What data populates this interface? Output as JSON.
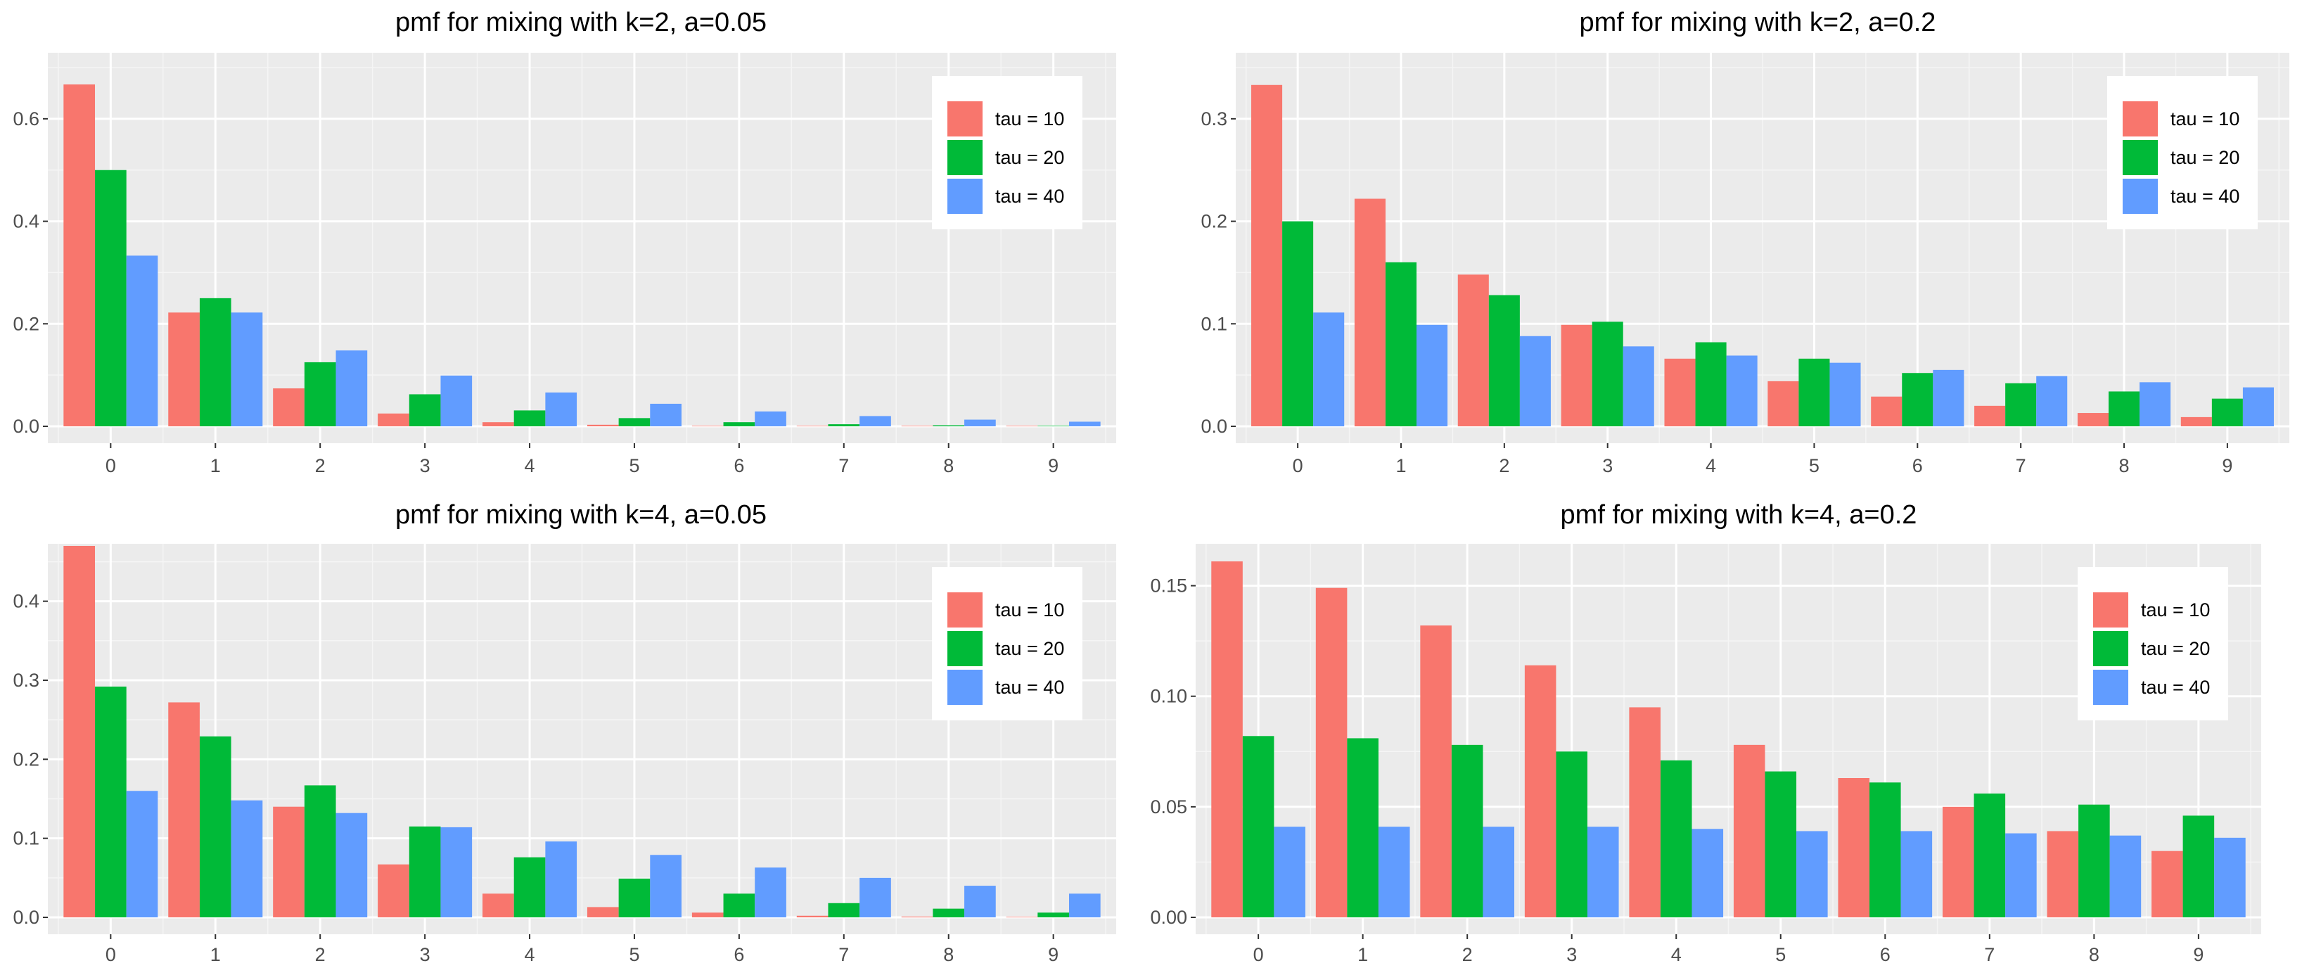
{
  "figure": {
    "legend_title": "",
    "legend_position": "top-right"
  },
  "series_meta": [
    {
      "name": "tau = 10",
      "color": "#F8766D"
    },
    {
      "name": "tau = 20",
      "color": "#00BA38"
    },
    {
      "name": "tau = 40",
      "color": "#619CFF"
    }
  ],
  "chart_data": [
    {
      "type": "bar",
      "title": "pmf for mixing with k=2, a=0.05",
      "xlabel": "",
      "ylabel": "",
      "categories": [
        "0",
        "1",
        "2",
        "3",
        "4",
        "5",
        "6",
        "7",
        "8",
        "9"
      ],
      "ylim": [
        0,
        0.7
      ],
      "yticks": [
        0.0,
        0.2,
        0.4,
        0.6
      ],
      "ytick_labels": [
        "0.0",
        "0.2",
        "0.4",
        "0.6"
      ],
      "grid": true,
      "legend": "top-right",
      "series": [
        {
          "name": "tau = 10",
          "values": [
            0.667,
            0.222,
            0.074,
            0.025,
            0.008,
            0.003,
            0.001,
            0.0003,
            0.0001,
            3e-05
          ]
        },
        {
          "name": "tau = 20",
          "values": [
            0.5,
            0.25,
            0.125,
            0.0625,
            0.031,
            0.016,
            0.008,
            0.004,
            0.002,
            0.001
          ]
        },
        {
          "name": "tau = 40",
          "values": [
            0.333,
            0.222,
            0.148,
            0.099,
            0.066,
            0.044,
            0.029,
            0.02,
            0.013,
            0.009
          ]
        }
      ]
    },
    {
      "type": "bar",
      "title": "pmf for mixing with k=2, a=0.2",
      "xlabel": "",
      "ylabel": "",
      "categories": [
        "0",
        "1",
        "2",
        "3",
        "4",
        "5",
        "6",
        "7",
        "8",
        "9"
      ],
      "ylim": [
        0,
        0.35
      ],
      "yticks": [
        0.0,
        0.1,
        0.2,
        0.3
      ],
      "ytick_labels": [
        "0.0",
        "0.1",
        "0.2",
        "0.3"
      ],
      "grid": true,
      "legend": "top-right",
      "series": [
        {
          "name": "tau = 10",
          "values": [
            0.333,
            0.222,
            0.148,
            0.099,
            0.066,
            0.044,
            0.029,
            0.02,
            0.013,
            0.009
          ]
        },
        {
          "name": "tau = 20",
          "values": [
            0.2,
            0.16,
            0.128,
            0.102,
            0.082,
            0.066,
            0.052,
            0.042,
            0.034,
            0.027
          ]
        },
        {
          "name": "tau = 40",
          "values": [
            0.111,
            0.099,
            0.088,
            0.078,
            0.069,
            0.062,
            0.055,
            0.049,
            0.043,
            0.038
          ]
        }
      ]
    },
    {
      "type": "bar",
      "title": "pmf for mixing with k=4, a=0.05",
      "xlabel": "",
      "ylabel": "",
      "categories": [
        "0",
        "1",
        "2",
        "3",
        "4",
        "5",
        "6",
        "7",
        "8",
        "9"
      ],
      "ylim": [
        0,
        0.47
      ],
      "yticks": [
        0.0,
        0.1,
        0.2,
        0.3,
        0.4
      ],
      "ytick_labels": [
        "0.0",
        "0.1",
        "0.2",
        "0.3",
        "0.4"
      ],
      "grid": true,
      "legend": "top-right",
      "series": [
        {
          "name": "tau = 10",
          "values": [
            0.47,
            0.272,
            0.14,
            0.067,
            0.03,
            0.013,
            0.006,
            0.002,
            0.001,
            0.0004
          ]
        },
        {
          "name": "tau = 20",
          "values": [
            0.292,
            0.229,
            0.167,
            0.115,
            0.076,
            0.049,
            0.03,
            0.018,
            0.011,
            0.006
          ]
        },
        {
          "name": "tau = 40",
          "values": [
            0.16,
            0.148,
            0.132,
            0.114,
            0.096,
            0.079,
            0.063,
            0.05,
            0.04,
            0.03
          ]
        }
      ]
    },
    {
      "type": "bar",
      "title": "pmf for mixing with k=4, a=0.2",
      "xlabel": "",
      "ylabel": "",
      "categories": [
        "0",
        "1",
        "2",
        "3",
        "4",
        "5",
        "6",
        "7",
        "8",
        "9"
      ],
      "ylim": [
        0,
        0.168
      ],
      "yticks": [
        0.0,
        0.05,
        0.1,
        0.15
      ],
      "ytick_labels": [
        "0.00",
        "0.05",
        "0.10",
        "0.15"
      ],
      "grid": true,
      "legend": "top-right",
      "series": [
        {
          "name": "tau = 10",
          "values": [
            0.161,
            0.149,
            0.132,
            0.114,
            0.095,
            0.078,
            0.063,
            0.05,
            0.039,
            0.03
          ]
        },
        {
          "name": "tau = 20",
          "values": [
            0.082,
            0.081,
            0.078,
            0.075,
            0.071,
            0.066,
            0.061,
            0.056,
            0.051,
            0.046
          ]
        },
        {
          "name": "tau = 40",
          "values": [
            0.041,
            0.041,
            0.041,
            0.041,
            0.04,
            0.039,
            0.039,
            0.038,
            0.037,
            0.036
          ]
        }
      ]
    }
  ]
}
